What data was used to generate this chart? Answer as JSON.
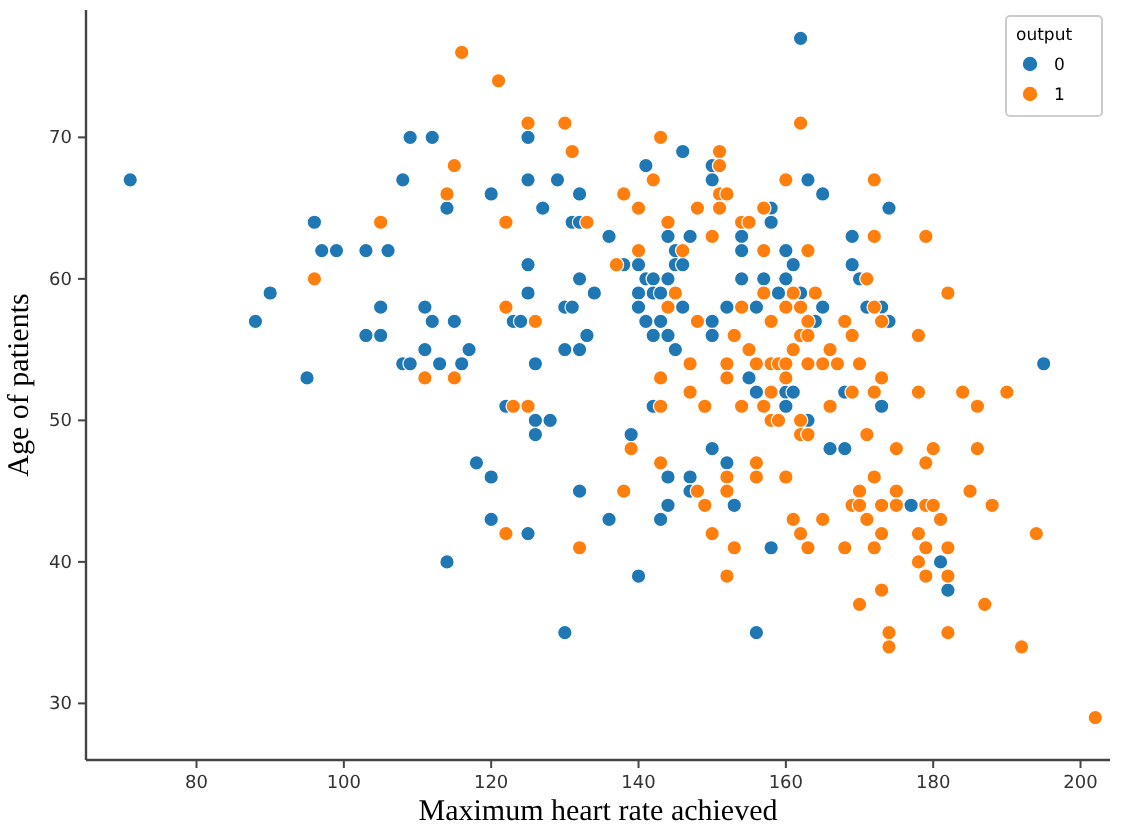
{
  "chart_data": {
    "type": "scatter",
    "xlabel": "Maximum heart rate achieved",
    "ylabel": "Age of patients",
    "legend_title": "output",
    "legend": "top right",
    "marker": "circle",
    "grid": false,
    "xlim": [
      65,
      204
    ],
    "ylim": [
      26,
      79
    ],
    "xticks": [
      80,
      100,
      120,
      140,
      160,
      180,
      200
    ],
    "yticks": [
      30,
      40,
      50,
      60,
      70
    ],
    "series": [
      {
        "name": "0",
        "color": "#1f77b4",
        "x": [
          71,
          109,
          112,
          108,
          114,
          96,
          97,
          99,
          103,
          106,
          90,
          88,
          105,
          111,
          112,
          115,
          103,
          105,
          111,
          108,
          109,
          113,
          116,
          95,
          125,
          125,
          129,
          120,
          132,
          127,
          131,
          132,
          136,
          125,
          132,
          134,
          125,
          130,
          131,
          123,
          124,
          133,
          130,
          132,
          117,
          126,
          146,
          141,
          150,
          150,
          144,
          147,
          145,
          138,
          140,
          145,
          146,
          141,
          142,
          144,
          140,
          142,
          143,
          140,
          146,
          141,
          143,
          150,
          142,
          144,
          150,
          145,
          152,
          156,
          155,
          154,
          154,
          158,
          158,
          160,
          161,
          154,
          157,
          160,
          159,
          162,
          162,
          156,
          160,
          161,
          163,
          165,
          174,
          169,
          169,
          170,
          165,
          171,
          173,
          164,
          174,
          195,
          168,
          114,
          122,
          126,
          128,
          126,
          118,
          120,
          132,
          120,
          125,
          136,
          139,
          142,
          160,
          144,
          147,
          147,
          144,
          143,
          150,
          152,
          153,
          140,
          130,
          156,
          158,
          173,
          163,
          166,
          168,
          177,
          181,
          182
        ],
        "values": [
          67,
          70,
          70,
          67,
          65,
          64,
          62,
          62,
          62,
          62,
          59,
          57,
          58,
          58,
          57,
          57,
          56,
          56,
          55,
          54,
          54,
          54,
          54,
          53,
          70,
          67,
          67,
          66,
          66,
          65,
          64,
          64,
          63,
          61,
          60,
          59,
          59,
          58,
          58,
          57,
          57,
          56,
          55,
          55,
          55,
          54,
          69,
          68,
          68,
          67,
          63,
          63,
          62,
          61,
          61,
          61,
          61,
          60,
          60,
          60,
          59,
          59,
          59,
          58,
          58,
          57,
          57,
          57,
          56,
          56,
          56,
          55,
          58,
          58,
          53,
          63,
          62,
          65,
          64,
          62,
          61,
          60,
          60,
          60,
          59,
          59,
          77,
          52,
          52,
          52,
          67,
          66,
          65,
          63,
          61,
          60,
          58,
          58,
          58,
          57,
          57,
          54,
          52,
          40,
          51,
          50,
          50,
          49,
          47,
          46,
          45,
          43,
          42,
          43,
          49,
          51,
          51,
          46,
          46,
          45,
          44,
          43,
          48,
          47,
          44,
          39,
          35,
          35,
          41,
          51,
          50,
          48,
          48,
          44,
          40,
          38
        ]
      },
      {
        "name": "1",
        "color": "#ff7f0e",
        "x": [
          116,
          115,
          114,
          105,
          96,
          111,
          115,
          121,
          125,
          130,
          131,
          122,
          133,
          122,
          126,
          143,
          151,
          151,
          142,
          138,
          151,
          152,
          140,
          148,
          151,
          144,
          150,
          140,
          146,
          137,
          145,
          144,
          148,
          153,
          147,
          143,
          154,
          158,
          155,
          152,
          152,
          156,
          158,
          159,
          160,
          161,
          160,
          154,
          155,
          157,
          157,
          160,
          157,
          160,
          161,
          162,
          147,
          158,
          172,
          172,
          179,
          163,
          171,
          182,
          164,
          162,
          172,
          163,
          168,
          173,
          162,
          163,
          169,
          178,
          166,
          163,
          165,
          167,
          170,
          169,
          172,
          178,
          184,
          190,
          173,
          123,
          125,
          122,
          132,
          138,
          139,
          143,
          149,
          154,
          157,
          158,
          159,
          162,
          162,
          143,
          148,
          149,
          152,
          152,
          150,
          153,
          156,
          156,
          160,
          152,
          161,
          162,
          163,
          166,
          186,
          171,
          175,
          180,
          179,
          186,
          172,
          170,
          175,
          185,
          165,
          169,
          170,
          173,
          175,
          179,
          180,
          188,
          171,
          181,
          173,
          178,
          194,
          163,
          168,
          172,
          179,
          182,
          178,
          179,
          182,
          173,
          170,
          187,
          174,
          174,
          182,
          192,
          202
        ],
        "values": [
          76,
          68,
          66,
          64,
          60,
          53,
          53,
          74,
          71,
          71,
          69,
          64,
          64,
          58,
          57,
          70,
          69,
          68,
          67,
          66,
          66,
          66,
          65,
          65,
          65,
          64,
          63,
          62,
          62,
          61,
          59,
          58,
          57,
          56,
          54,
          53,
          58,
          57,
          55,
          54,
          53,
          54,
          54,
          54,
          54,
          55,
          53,
          64,
          64,
          62,
          65,
          67,
          59,
          58,
          59,
          71,
          52,
          52,
          67,
          63,
          63,
          62,
          60,
          59,
          59,
          58,
          58,
          57,
          57,
          57,
          56,
          56,
          56,
          56,
          55,
          54,
          54,
          54,
          54,
          52,
          52,
          52,
          52,
          52,
          53,
          51,
          51,
          42,
          41,
          45,
          48,
          51,
          51,
          51,
          51,
          50,
          50,
          50,
          49,
          47,
          45,
          44,
          46,
          45,
          42,
          41,
          47,
          46,
          46,
          39,
          43,
          42,
          49,
          51,
          51,
          49,
          48,
          48,
          47,
          48,
          46,
          45,
          45,
          45,
          43,
          44,
          44,
          44,
          44,
          44,
          44,
          44,
          43,
          43,
          42,
          42,
          42,
          41,
          41,
          41,
          41,
          41,
          40,
          39,
          39,
          38,
          37,
          37,
          35,
          34,
          35,
          34,
          29
        ]
      }
    ]
  }
}
